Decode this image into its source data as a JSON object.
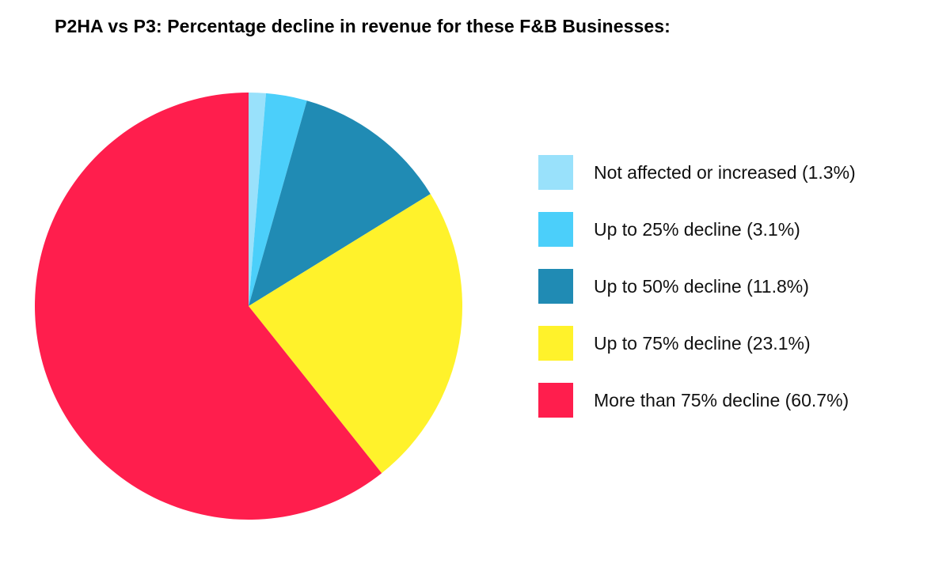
{
  "chart_data": {
    "type": "pie",
    "title": "P2HA vs P3: Percentage decline in revenue for these F&B Businesses:",
    "legend_position": "right",
    "slices": [
      {
        "label": "Not affected or increased (1.3%)",
        "value": 1.3,
        "color": "#99E1FB"
      },
      {
        "label": "Up to 25% decline (3.1%)",
        "value": 3.1,
        "color": "#4BCFFA"
      },
      {
        "label": "Up to 50% decline (11.8%)",
        "value": 11.8,
        "color": "#208BB4"
      },
      {
        "label": "Up to 75% decline (23.1%)",
        "value": 23.1,
        "color": "#FFF22B"
      },
      {
        "label": "More than 75% decline (60.7%)",
        "value": 60.7,
        "color": "#FF1E4D"
      }
    ]
  }
}
